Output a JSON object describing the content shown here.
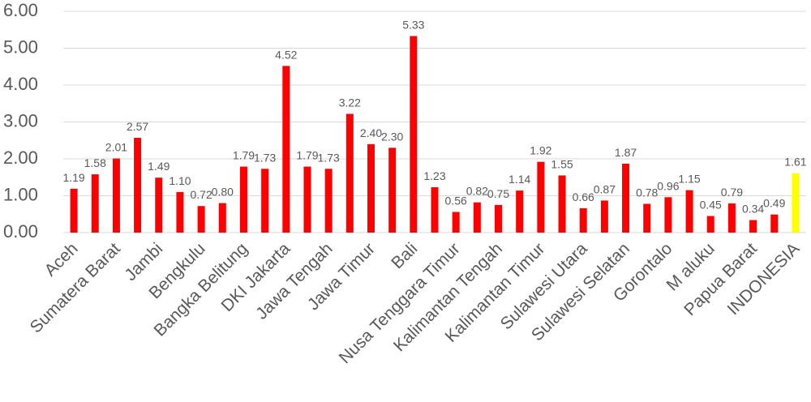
{
  "chart_data": {
    "type": "bar",
    "categories": [
      "Aceh",
      null,
      "Sumatera Barat",
      null,
      "Jambi",
      null,
      "Bengkulu",
      null,
      "Bangka Belitung",
      null,
      "DKI Jakarta",
      null,
      "Jawa Tengah",
      null,
      "Jawa Timur",
      null,
      "Bali",
      null,
      "Nusa Tenggara Timur",
      null,
      "Kalimantan Tengah",
      null,
      "Kalimantan Timur",
      null,
      "Sulawesi Utara",
      null,
      "Sulawesi Selatan",
      null,
      "Gorontalo",
      null,
      "M aluku",
      null,
      "Papua Barat",
      null,
      "INDONESIA"
    ],
    "values": [
      1.19,
      1.58,
      2.01,
      2.57,
      1.49,
      1.1,
      0.72,
      0.8,
      1.79,
      1.73,
      4.52,
      1.79,
      1.73,
      3.22,
      2.4,
      2.3,
      5.33,
      1.23,
      0.56,
      0.82,
      0.75,
      1.14,
      1.92,
      1.55,
      0.66,
      0.87,
      1.87,
      0.78,
      0.96,
      1.15,
      0.45,
      0.79,
      0.34,
      0.49,
      1.61
    ],
    "value_labels": [
      "1.19",
      "1.58",
      "2.01",
      "2.57",
      "1.49",
      "1.10",
      "0.72",
      "0.80",
      "1.79",
      "1.73",
      "4.52",
      "1.79",
      "1.73",
      "3.22",
      "2.40",
      "2.30",
      "5.33",
      "1.23",
      "0.56",
      "0.82",
      "0.75",
      "1.14",
      "1.92",
      "1.55",
      "0.66",
      "0.87",
      "1.87",
      "0.78",
      "0.96",
      "1.15",
      "0.45",
      "0.79",
      "0.34",
      "0.49",
      "1.61"
    ],
    "colors": [
      "#ff0000",
      "#ff0000",
      "#ff0000",
      "#ff0000",
      "#ff0000",
      "#ff0000",
      "#ff0000",
      "#ff0000",
      "#ff0000",
      "#ff0000",
      "#ff0000",
      "#ff0000",
      "#ff0000",
      "#ff0000",
      "#ff0000",
      "#ff0000",
      "#ff0000",
      "#ff0000",
      "#ff0000",
      "#ff0000",
      "#ff0000",
      "#ff0000",
      "#ff0000",
      "#ff0000",
      "#ff0000",
      "#ff0000",
      "#ff0000",
      "#ff0000",
      "#ff0000",
      "#ff0000",
      "#ff0000",
      "#ff0000",
      "#ff0000",
      "#ff0000",
      "#ffff00"
    ],
    "ylim": [
      0,
      6
    ],
    "yticks": [
      {
        "value": 0,
        "label": "0.00"
      },
      {
        "value": 1,
        "label": "1.00"
      },
      {
        "value": 2,
        "label": "2.00"
      },
      {
        "value": 3,
        "label": "3.00"
      },
      {
        "value": 4,
        "label": "4.00"
      },
      {
        "value": 5,
        "label": "5.00"
      },
      {
        "value": 6,
        "label": "6.00"
      }
    ],
    "grid": true
  }
}
